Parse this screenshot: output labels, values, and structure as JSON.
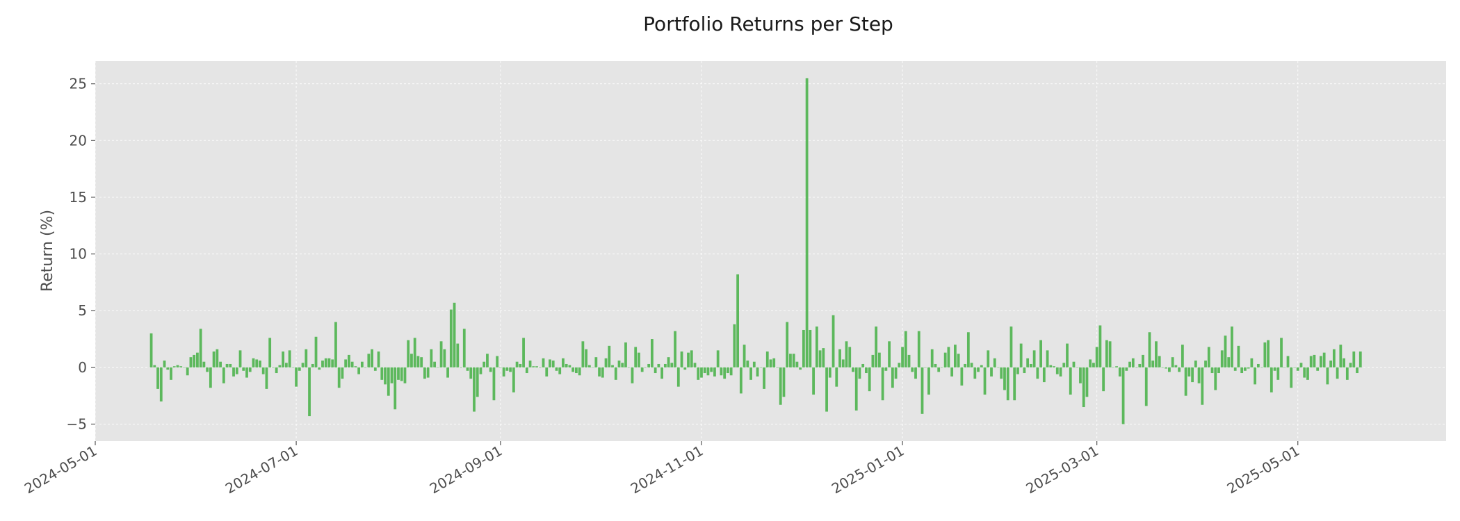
{
  "chart_data": {
    "type": "bar",
    "title": "Portfolio Returns per Step",
    "xlabel": "",
    "ylabel": "Return (%)",
    "xlim": [
      "2024-05-01",
      "2025-06-15"
    ],
    "ylim": [
      -6.5,
      27
    ],
    "xticks": [
      "2024-05-01",
      "2024-07-01",
      "2024-09-01",
      "2024-11-01",
      "2025-01-01",
      "2025-03-01",
      "2025-05-01"
    ],
    "yticks": [
      -5,
      0,
      5,
      10,
      15,
      20,
      25
    ],
    "grid": true,
    "bar_color": "#5cb85c",
    "plot_background": "#e5e5e5",
    "series": [
      {
        "start_date": "2024-05-18",
        "step_days": 1,
        "values": [
          3.0,
          0.2,
          -1.9,
          -3.0,
          0.6,
          -0.2,
          -1.1,
          0.1,
          0.2,
          0.1,
          0.0,
          -0.7,
          0.9,
          1.1,
          1.3,
          3.4,
          0.5,
          -0.4,
          -1.8,
          1.4,
          1.6,
          0.5,
          -1.4,
          0.3,
          0.3,
          -0.8,
          -0.6,
          1.5,
          -0.3,
          -0.9,
          -0.4,
          0.8,
          0.7,
          0.6,
          -0.6,
          -1.9,
          2.6,
          0.0,
          -0.5,
          0.2,
          1.4,
          0.4,
          1.5,
          0.0,
          -1.7,
          -0.3,
          0.4,
          1.6,
          -4.3,
          0.3,
          2.7,
          -0.2,
          0.6,
          0.8,
          0.8,
          0.7,
          4.0,
          -1.8,
          -1.0,
          0.7,
          1.1,
          0.5,
          0.1,
          -0.6,
          0.5,
          0.0,
          1.2,
          1.6,
          -0.3,
          1.4,
          -1.1,
          -1.5,
          -2.5,
          -1.4,
          -3.7,
          -1.1,
          -1.2,
          -1.4,
          2.4,
          1.2,
          2.6,
          1.0,
          0.9,
          -1.0,
          -0.9,
          1.6,
          0.5,
          0.0,
          2.3,
          1.6,
          -0.9,
          5.1,
          5.7,
          2.1,
          0.0,
          3.4,
          -0.3,
          -1.0,
          -3.9,
          -2.6,
          -0.6,
          0.5,
          1.2,
          -0.4,
          -2.9,
          1.0,
          0.0,
          -0.8,
          -0.3,
          -0.4,
          -2.2,
          0.5,
          0.3,
          2.6,
          -0.5,
          0.6,
          0.1,
          0.1,
          0.0,
          0.8,
          -0.8,
          0.7,
          0.6,
          -0.3,
          -0.6,
          0.8,
          0.3,
          0.2,
          -0.4,
          -0.5,
          -0.7,
          2.3,
          1.6,
          0.2,
          0.0,
          0.9,
          -0.8,
          -0.9,
          0.8,
          1.9,
          0.2,
          -1.1,
          0.6,
          0.4,
          2.2,
          0.0,
          -1.4,
          1.8,
          1.3,
          -0.4,
          0.0,
          0.3,
          2.5,
          -0.5,
          0.3,
          -1.0,
          0.3,
          0.9,
          0.4,
          3.2,
          -1.7,
          1.4,
          -0.2,
          1.3,
          1.5,
          0.4,
          -1.1,
          -0.9,
          -0.5,
          -0.7,
          -0.4,
          -0.8,
          1.5,
          -0.7,
          -1.0,
          -0.5,
          -0.7,
          3.8,
          8.2,
          -2.3,
          2.0,
          0.6,
          -1.1,
          0.5,
          -0.8,
          0.0,
          -1.9,
          1.4,
          0.7,
          0.8,
          0.0,
          -3.3,
          -2.6,
          4.0,
          1.2,
          1.2,
          0.5,
          -0.2,
          3.3,
          25.5,
          3.3,
          -2.4,
          3.6,
          1.5,
          1.7,
          -3.9,
          -0.9,
          4.6,
          -1.7,
          1.6,
          0.7,
          2.3,
          1.8,
          -0.4,
          -3.8,
          -1.0,
          0.3,
          -0.5,
          -2.1,
          1.1,
          3.6,
          1.3,
          -2.9,
          -0.3,
          2.3,
          -1.8,
          -1.0,
          0.4,
          1.8,
          3.2,
          1.1,
          -0.4,
          -1.0,
          3.2,
          -4.1,
          0.0,
          -2.4,
          1.6,
          0.3,
          -0.4,
          0.0,
          1.3,
          1.8,
          -0.8,
          2.0,
          1.2,
          -1.6,
          0.3,
          3.1,
          0.4,
          -1.0,
          -0.4,
          0.2,
          -2.4,
          1.5,
          -0.8,
          0.8,
          0.0,
          -1.0,
          -2.0,
          -2.9,
          3.6,
          -2.9,
          -0.6,
          2.1,
          -0.5,
          0.8,
          0.3,
          1.5,
          -1.0,
          2.4,
          -1.3,
          1.5,
          0.2,
          0.1,
          -0.6,
          -0.8,
          0.4,
          2.1,
          -2.4,
          0.5,
          0.0,
          -1.4,
          -3.5,
          -2.6,
          0.7,
          0.4,
          1.8,
          3.7,
          -2.1,
          2.4,
          2.3,
          0.0,
          0.1,
          -0.8,
          -5.0,
          -0.3,
          0.5,
          0.8,
          0.0,
          0.3,
          1.1,
          -3.4,
          3.1,
          0.6,
          2.3,
          1.0,
          0.0,
          -0.1,
          -0.4,
          0.9,
          0.2,
          -0.4,
          2.0,
          -2.5,
          -0.8,
          -1.3,
          0.6,
          -1.4,
          -3.3,
          0.6,
          1.8,
          -0.5,
          -2.0,
          -0.5,
          1.5,
          2.8,
          0.9,
          3.6,
          -0.3,
          1.9,
          -0.5,
          -0.3,
          -0.1,
          0.8,
          -1.5,
          0.3,
          0.0,
          2.2,
          2.4,
          -2.2,
          -0.3,
          -1.1,
          2.6,
          0.0,
          1.0,
          -1.8,
          0.0,
          -0.3,
          0.4,
          -0.9,
          -1.1,
          1.0,
          1.1,
          -0.3,
          1.0,
          1.3,
          -1.5,
          0.6,
          1.6,
          -1.0,
          2.0,
          0.8,
          -1.1,
          0.4,
          1.4,
          -0.5,
          1.4
        ]
      }
    ]
  }
}
